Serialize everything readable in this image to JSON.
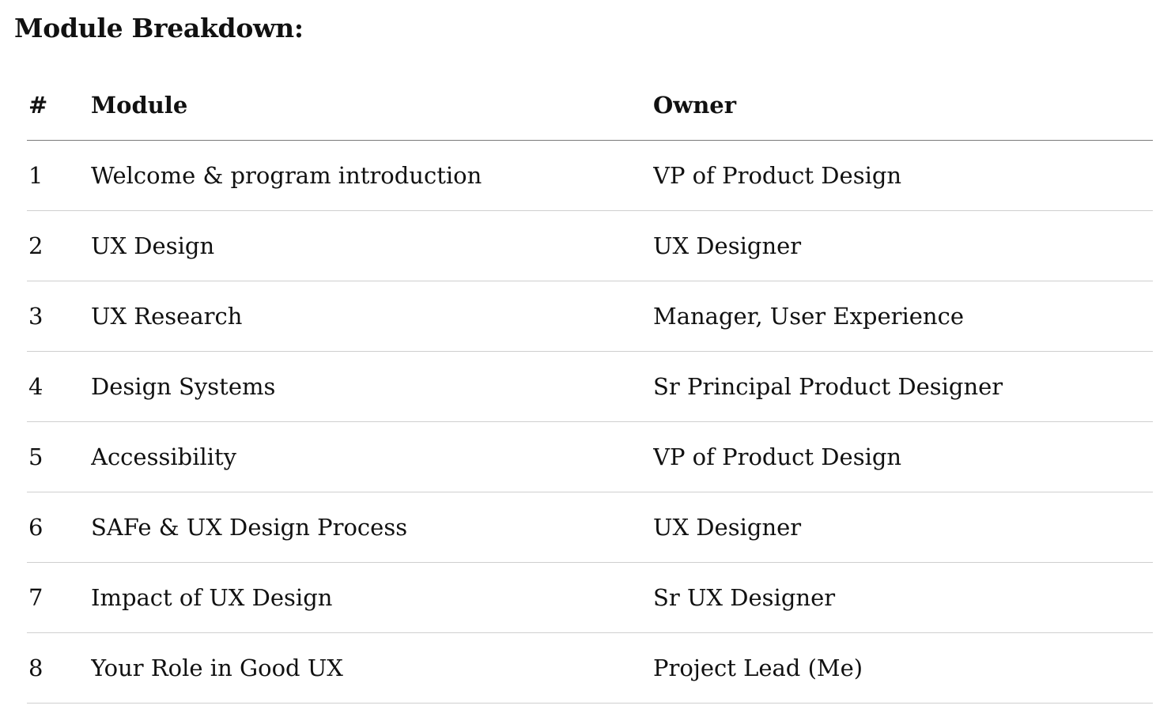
{
  "page": {
    "title": "Module Breakdown:"
  },
  "table": {
    "headers": {
      "number": "#",
      "module": "Module",
      "owner": "Owner"
    },
    "rows": [
      {
        "number": "1",
        "module": "Welcome & program introduction",
        "owner": "VP of Product Design"
      },
      {
        "number": "2",
        "module": "UX Design",
        "owner": "UX Designer"
      },
      {
        "number": "3",
        "module": "UX Research",
        "owner": "Manager, User Experience"
      },
      {
        "number": "4",
        "module": "Design Systems",
        "owner": "Sr Principal Product Designer"
      },
      {
        "number": "5",
        "module": "Accessibility",
        "owner": "VP of Product Design"
      },
      {
        "number": "6",
        "module": "SAFe & UX Design Process",
        "owner": "UX Designer"
      },
      {
        "number": "7",
        "module": "Impact of UX Design",
        "owner": "Sr UX Designer"
      },
      {
        "number": "8",
        "module": "Your Role in Good UX",
        "owner": "Project Lead (Me)"
      }
    ]
  }
}
